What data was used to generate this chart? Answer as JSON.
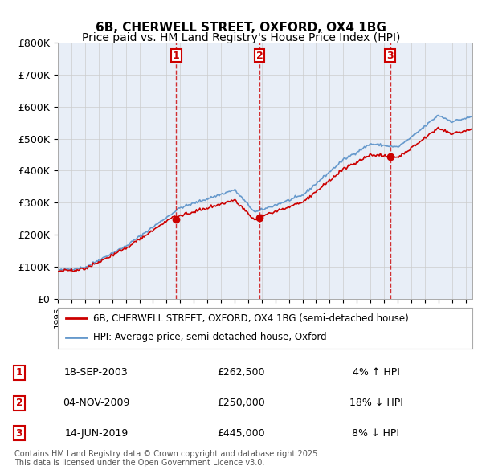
{
  "title_line1": "6B, CHERWELL STREET, OXFORD, OX4 1BG",
  "title_line2": "Price paid vs. HM Land Registry's House Price Index (HPI)",
  "ylim": [
    0,
    800000
  ],
  "yticks": [
    0,
    100000,
    200000,
    300000,
    400000,
    500000,
    600000,
    700000,
    800000
  ],
  "ytick_labels": [
    "£0",
    "£100K",
    "£200K",
    "£300K",
    "£400K",
    "£500K",
    "£600K",
    "£700K",
    "£800K"
  ],
  "xlim_start": 1995.0,
  "xlim_end": 2025.5,
  "transactions": [
    {
      "num": 1,
      "date": "18-SEP-2003",
      "price": 262500,
      "hpi_rel": "4% ↑ HPI",
      "year": 2003.71
    },
    {
      "num": 2,
      "date": "04-NOV-2009",
      "price": 250000,
      "hpi_rel": "18% ↓ HPI",
      "year": 2009.84
    },
    {
      "num": 3,
      "date": "14-JUN-2019",
      "price": 445000,
      "hpi_rel": "8% ↓ HPI",
      "year": 2019.45
    }
  ],
  "legend_property": "6B, CHERWELL STREET, OXFORD, OX4 1BG (semi-detached house)",
  "legend_hpi": "HPI: Average price, semi-detached house, Oxford",
  "footnote": "Contains HM Land Registry data © Crown copyright and database right 2025.\nThis data is licensed under the Open Government Licence v3.0.",
  "line_color_property": "#cc0000",
  "line_color_hpi": "#6699cc",
  "background_color": "#e8eef7",
  "plot_bg_color": "#ffffff",
  "grid_color": "#cccccc",
  "vline_color": "#cc0000",
  "marker_box_color": "#cc0000",
  "title_fontsize": 11,
  "subtitle_fontsize": 10
}
